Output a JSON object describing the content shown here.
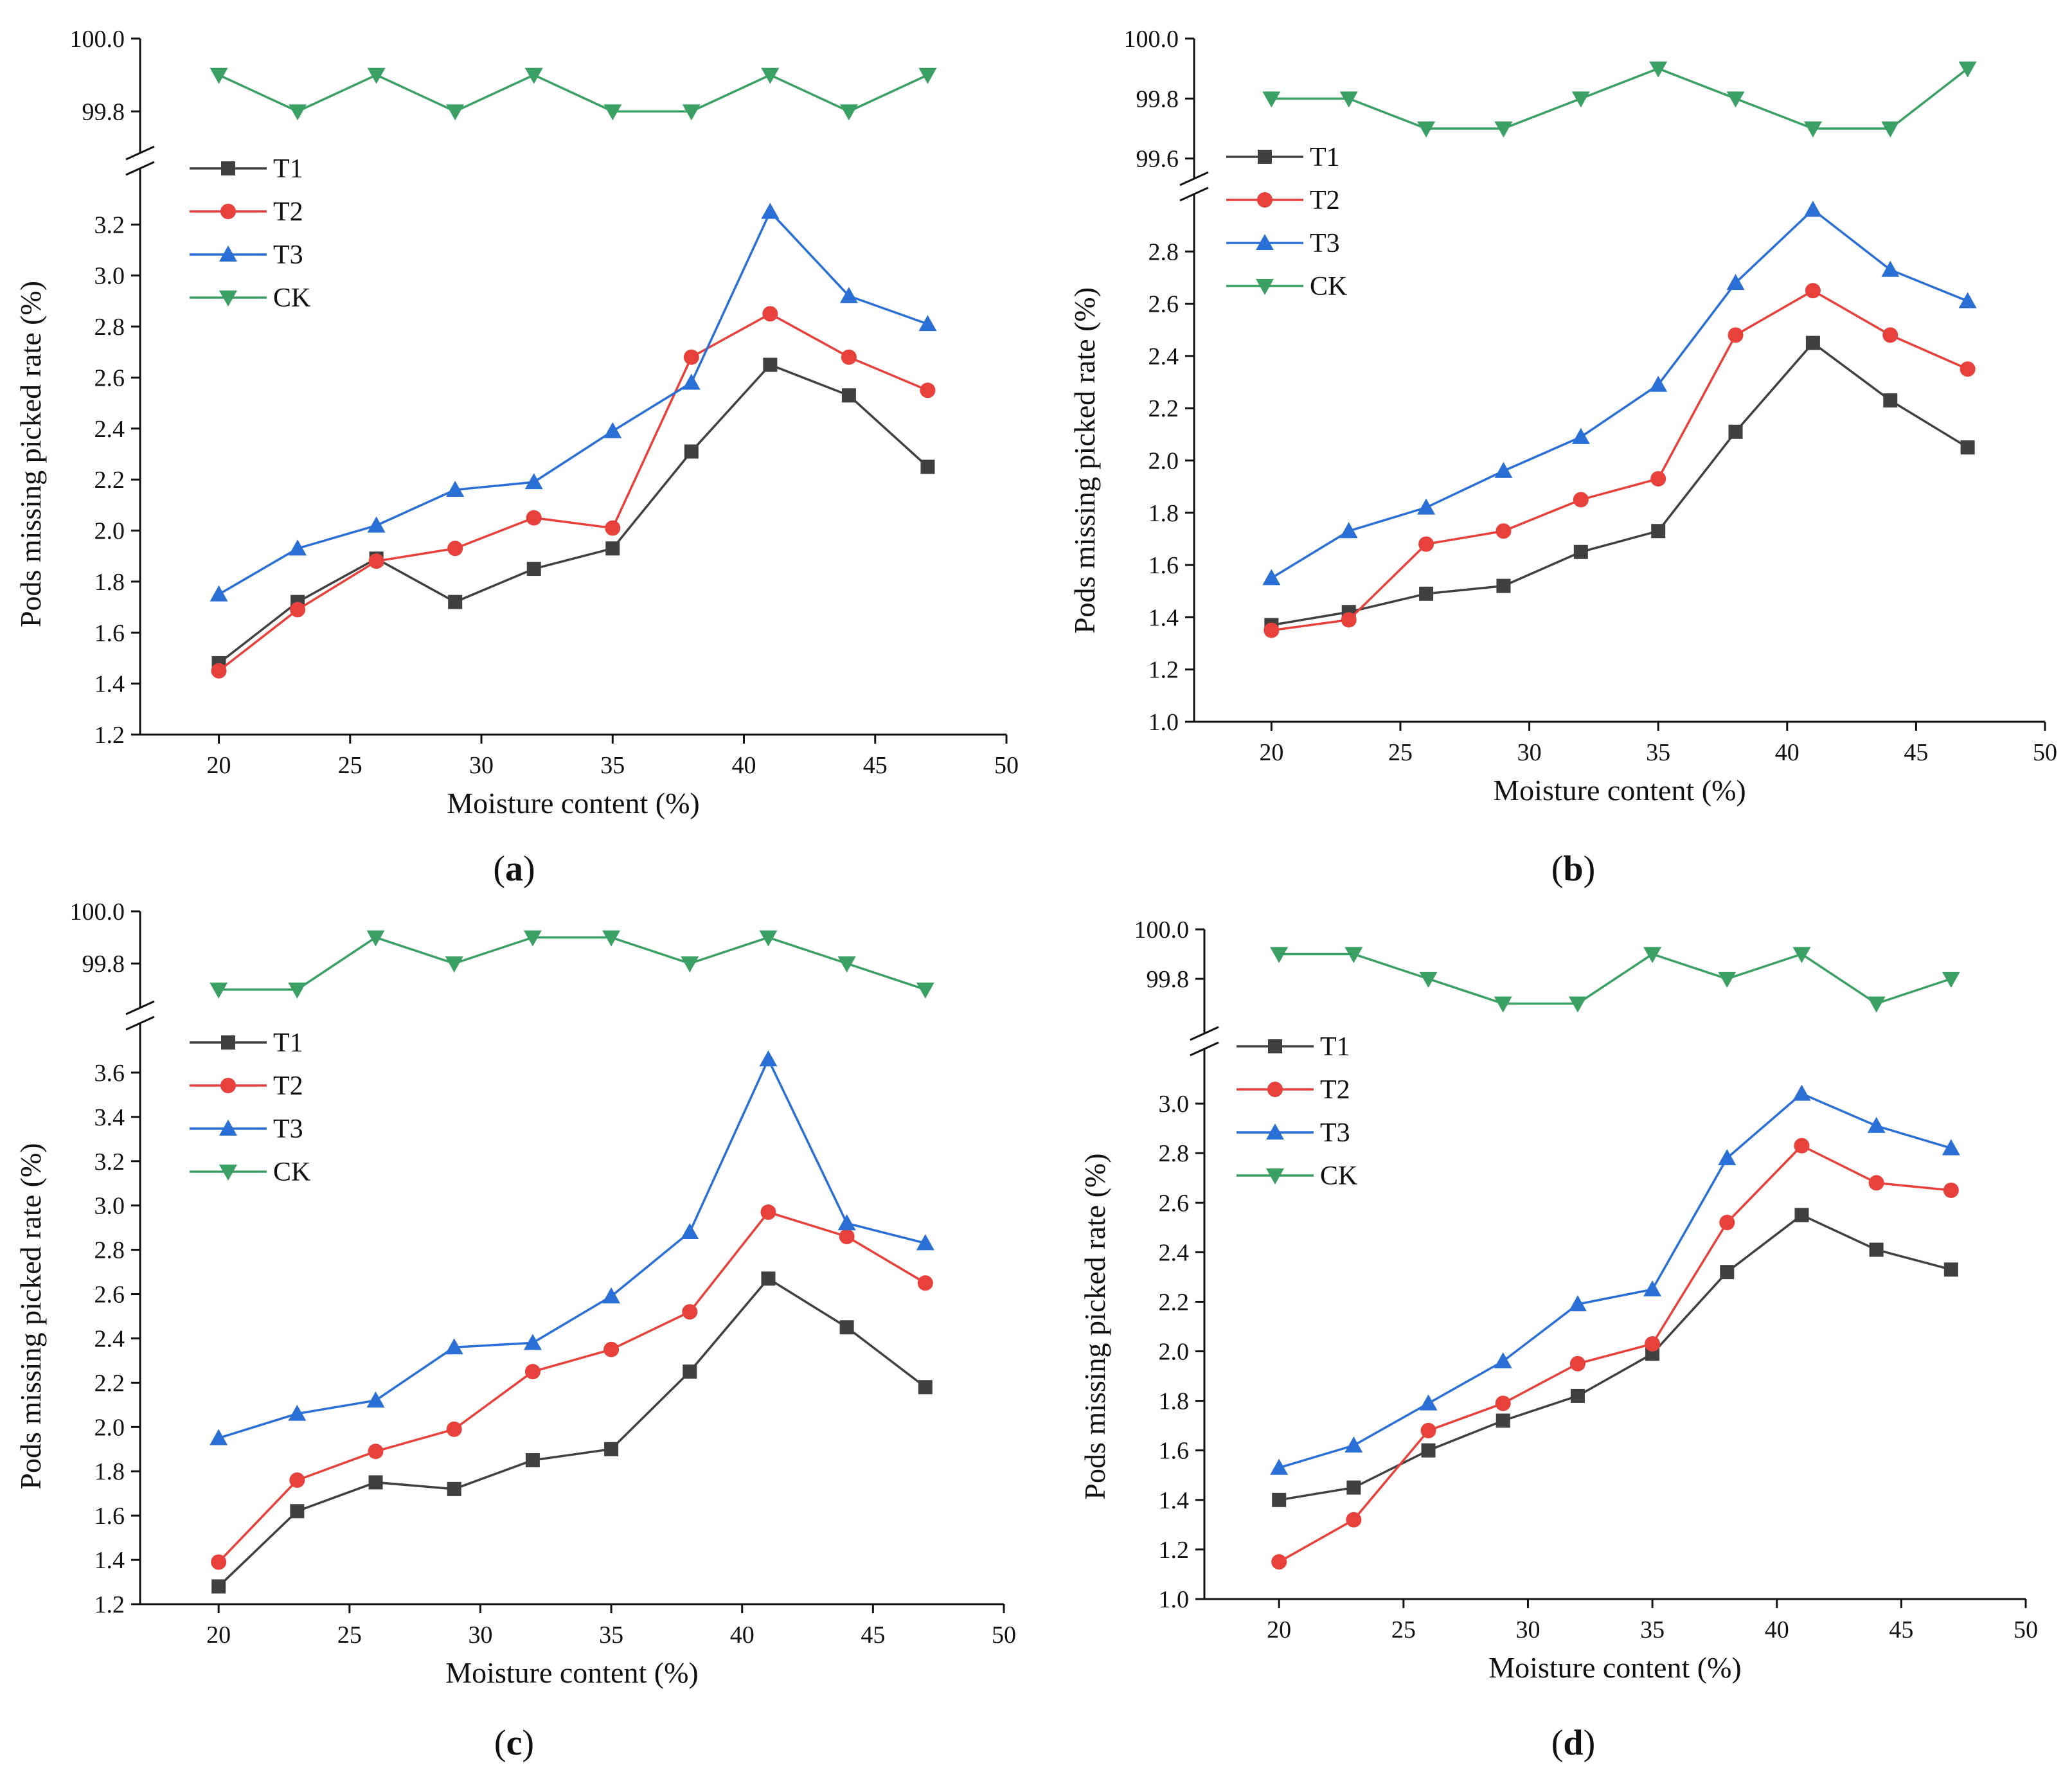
{
  "colors": {
    "T1": "#404040",
    "T2": "#e8403a",
    "T3": "#2a6fd6",
    "CK": "#3aa064"
  },
  "chart_data": [
    {
      "type": "line",
      "panel_label": "a",
      "xlabel": "Moisture content (%)",
      "ylabel": "Pods missing picked rate (%)",
      "xlim": [
        17,
        50
      ],
      "x_ticks": [
        20,
        25,
        30,
        35,
        40,
        45,
        50
      ],
      "x_tick_labels": [
        "20",
        "25",
        "30",
        "35",
        "40",
        "45",
        "50"
      ],
      "ylim_lower": [
        1.2,
        3.4
      ],
      "y_ticks_lower": [
        1.2,
        1.4,
        1.6,
        1.8,
        2.0,
        2.2,
        2.4,
        2.6,
        2.8,
        3.0,
        3.2
      ],
      "y_tick_labels_lower": [
        "1.2",
        "1.4",
        "1.6",
        "1.8",
        "2.0",
        "2.2",
        "2.4",
        "2.6",
        "2.8",
        "3.0",
        "3.2"
      ],
      "ylim_upper": [
        99.7,
        100.0
      ],
      "y_ticks_upper": [
        99.8,
        100.0
      ],
      "y_tick_labels_upper": [
        "99.8",
        "100.0"
      ],
      "x": [
        20,
        23,
        26,
        29,
        32,
        35,
        38,
        41,
        44,
        47
      ],
      "series": [
        {
          "name": "T1",
          "values": [
            1.48,
            1.72,
            1.89,
            1.72,
            1.85,
            1.93,
            2.31,
            2.65,
            2.53,
            2.25
          ]
        },
        {
          "name": "T2",
          "values": [
            1.45,
            1.69,
            1.88,
            1.93,
            2.05,
            2.01,
            2.68,
            2.85,
            2.68,
            2.55
          ]
        },
        {
          "name": "T3",
          "values": [
            1.75,
            1.93,
            2.02,
            2.16,
            2.19,
            2.39,
            2.58,
            3.25,
            2.92,
            2.81
          ]
        },
        {
          "name": "CK",
          "values": [
            99.9,
            99.8,
            99.9,
            99.8,
            99.9,
            99.8,
            99.8,
            99.9,
            99.8,
            99.9
          ]
        }
      ]
    },
    {
      "type": "line",
      "panel_label": "b",
      "xlabel": "Moisture content (%)",
      "ylabel": "Pods missing picked rate (%)",
      "xlim": [
        17,
        50
      ],
      "x_ticks": [
        20,
        25,
        30,
        35,
        40,
        45,
        50
      ],
      "x_tick_labels": [
        "20",
        "25",
        "30",
        "35",
        "40",
        "45",
        "50"
      ],
      "ylim_lower": [
        1.0,
        3.0
      ],
      "y_ticks_lower": [
        1.0,
        1.2,
        1.4,
        1.6,
        1.8,
        2.0,
        2.2,
        2.4,
        2.6,
        2.8
      ],
      "y_tick_labels_lower": [
        "1.0",
        "1.2",
        "1.4",
        "1.6",
        "1.8",
        "2.0",
        "2.2",
        "2.4",
        "2.6",
        "2.8"
      ],
      "ylim_upper": [
        99.55,
        100.0
      ],
      "y_ticks_upper": [
        99.6,
        99.8,
        100.0
      ],
      "y_tick_labels_upper": [
        "99.6",
        "99.8",
        "100.0"
      ],
      "x": [
        20,
        23,
        26,
        29,
        32,
        35,
        38,
        41,
        44,
        47
      ],
      "series": [
        {
          "name": "T1",
          "values": [
            1.37,
            1.42,
            1.49,
            1.52,
            1.65,
            1.73,
            2.11,
            2.45,
            2.23,
            2.05
          ]
        },
        {
          "name": "T2",
          "values": [
            1.35,
            1.39,
            1.68,
            1.73,
            1.85,
            1.93,
            2.48,
            2.65,
            2.48,
            2.35
          ]
        },
        {
          "name": "T3",
          "values": [
            1.55,
            1.73,
            1.82,
            1.96,
            2.09,
            2.29,
            2.68,
            2.96,
            2.73,
            2.61
          ]
        },
        {
          "name": "CK",
          "values": [
            99.8,
            99.8,
            99.7,
            99.7,
            99.8,
            99.9,
            99.8,
            99.7,
            99.7,
            99.9
          ]
        }
      ]
    },
    {
      "type": "line",
      "panel_label": "c",
      "xlabel": "Moisture content (%)",
      "ylabel": "Pods missing picked rate (%)",
      "xlim": [
        17,
        50
      ],
      "x_ticks": [
        20,
        25,
        30,
        35,
        40,
        45,
        50
      ],
      "x_tick_labels": [
        "20",
        "25",
        "30",
        "35",
        "40",
        "45",
        "50"
      ],
      "ylim_lower": [
        1.2,
        3.8
      ],
      "y_ticks_lower": [
        1.2,
        1.4,
        1.6,
        1.8,
        2.0,
        2.2,
        2.4,
        2.6,
        2.8,
        3.0,
        3.2,
        3.4,
        3.6
      ],
      "y_tick_labels_lower": [
        "1.2",
        "1.4",
        "1.6",
        "1.8",
        "2.0",
        "2.2",
        "2.4",
        "2.6",
        "2.8",
        "3.0",
        "3.2",
        "3.4",
        "3.6"
      ],
      "ylim_upper": [
        99.65,
        100.0
      ],
      "y_ticks_upper": [
        99.8,
        100.0
      ],
      "y_tick_labels_upper": [
        "99.8",
        "100.0"
      ],
      "x": [
        20,
        23,
        26,
        29,
        32,
        35,
        38,
        41,
        44,
        47
      ],
      "series": [
        {
          "name": "T1",
          "values": [
            1.28,
            1.62,
            1.75,
            1.72,
            1.85,
            1.9,
            2.25,
            2.67,
            2.45,
            2.18
          ]
        },
        {
          "name": "T2",
          "values": [
            1.39,
            1.76,
            1.89,
            1.99,
            2.25,
            2.35,
            2.52,
            2.97,
            2.86,
            2.65
          ]
        },
        {
          "name": "T3",
          "values": [
            1.95,
            2.06,
            2.12,
            2.36,
            2.38,
            2.59,
            2.88,
            3.66,
            2.92,
            2.83
          ]
        },
        {
          "name": "CK",
          "values": [
            99.7,
            99.7,
            99.9,
            99.8,
            99.9,
            99.9,
            99.8,
            99.9,
            99.8,
            99.7
          ]
        }
      ]
    },
    {
      "type": "line",
      "panel_label": "d",
      "xlabel": "Moisture content (%)",
      "ylabel": "Pods missing picked rate (%)",
      "xlim": [
        17,
        50
      ],
      "x_ticks": [
        20,
        25,
        30,
        35,
        40,
        45,
        50
      ],
      "x_tick_labels": [
        "20",
        "25",
        "30",
        "35",
        "40",
        "45",
        "50"
      ],
      "ylim_lower": [
        1.0,
        3.2
      ],
      "y_ticks_lower": [
        1.0,
        1.2,
        1.4,
        1.6,
        1.8,
        2.0,
        2.2,
        2.4,
        2.6,
        2.8,
        3.0
      ],
      "y_tick_labels_lower": [
        "1.0",
        "1.2",
        "1.4",
        "1.6",
        "1.8",
        "2.0",
        "2.2",
        "2.4",
        "2.6",
        "2.8",
        "3.0"
      ],
      "ylim_upper": [
        99.6,
        100.0
      ],
      "y_ticks_upper": [
        99.8,
        100.0
      ],
      "y_tick_labels_upper": [
        "99.8",
        "100.0"
      ],
      "x": [
        20,
        23,
        26,
        29,
        32,
        35,
        38,
        41,
        44,
        47
      ],
      "series": [
        {
          "name": "T1",
          "values": [
            1.4,
            1.45,
            1.6,
            1.72,
            1.82,
            1.99,
            2.32,
            2.55,
            2.41,
            2.33
          ]
        },
        {
          "name": "T2",
          "values": [
            1.15,
            1.32,
            1.68,
            1.79,
            1.95,
            2.03,
            2.52,
            2.83,
            2.68,
            2.65
          ]
        },
        {
          "name": "T3",
          "values": [
            1.53,
            1.62,
            1.79,
            1.96,
            2.19,
            2.25,
            2.78,
            3.04,
            2.91,
            2.82
          ]
        },
        {
          "name": "CK",
          "values": [
            99.9,
            99.9,
            99.8,
            99.7,
            99.7,
            99.9,
            99.8,
            99.9,
            99.7,
            99.8
          ]
        }
      ]
    }
  ]
}
